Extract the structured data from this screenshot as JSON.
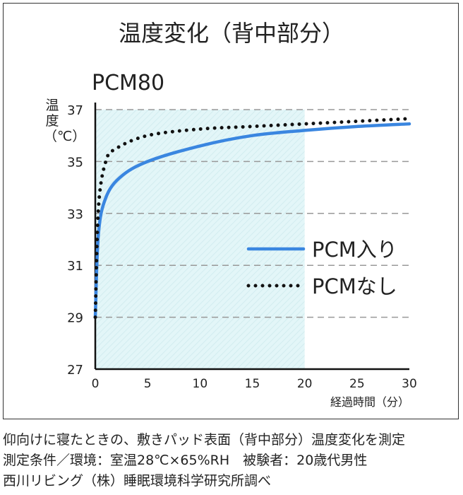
{
  "title": "温度変化（背中部分）",
  "notes": [
    "仰向けに寝たときの、敷きパッド表面（背中部分）温度変化を測定",
    "測定条件／環境：室温28℃×65%RH　被験者：20歳代男性",
    "西川リビング（株）睡眠環境科学研究所調べ"
  ],
  "chart_data": {
    "type": "line",
    "title": "PCM80",
    "ylabel": "温度（℃）",
    "xlabel": "経過時間（分）",
    "xlim": [
      0,
      30
    ],
    "ylim": [
      27,
      37
    ],
    "xticks": [
      "0",
      "5",
      "10",
      "15",
      "20",
      "25",
      "30"
    ],
    "yticks": [
      "27",
      "29",
      "31",
      "33",
      "35",
      "37"
    ],
    "shaded_x_range": [
      0,
      20
    ],
    "legend_position": "center-right",
    "series": [
      {
        "name": "PCM入り",
        "style": "solid",
        "color": "#3a86e0",
        "x": [
          0,
          0.3,
          1,
          2.4,
          5,
          10,
          15,
          20,
          25,
          30
        ],
        "y": [
          29,
          32.2,
          33.6,
          34.4,
          35.0,
          35.6,
          36.0,
          36.2,
          36.35,
          36.45
        ]
      },
      {
        "name": "PCMなし",
        "style": "dotted",
        "color": "#111111",
        "x": [
          0,
          0.3,
          1,
          2,
          5,
          10,
          15,
          20,
          25,
          30
        ],
        "y": [
          29,
          33.2,
          35.0,
          35.5,
          36.0,
          36.25,
          36.35,
          36.45,
          36.55,
          36.65
        ]
      }
    ]
  }
}
